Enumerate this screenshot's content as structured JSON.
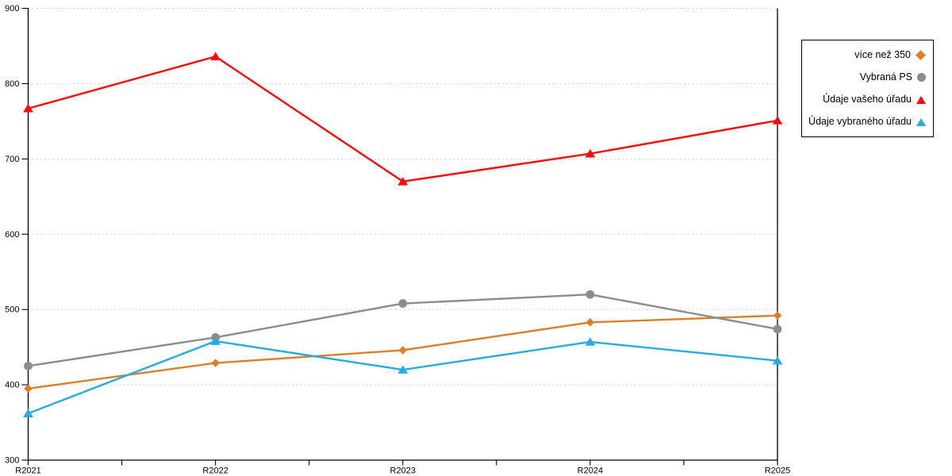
{
  "chart_data": {
    "type": "line",
    "title": "",
    "xlabel": "",
    "ylabel": "",
    "categories": [
      "R2021",
      "R2022",
      "R2023",
      "R2024",
      "R2025"
    ],
    "series": [
      {
        "name": "více než 350",
        "marker": "diamond",
        "color": "#DD7E28",
        "values": [
          395,
          429,
          446,
          483,
          492
        ]
      },
      {
        "name": "Vybraná PS",
        "marker": "circle",
        "color": "#8C8C8C",
        "values": [
          425,
          463,
          508,
          520,
          474
        ]
      },
      {
        "name": "Údaje vašeho úřadu",
        "marker": "triangle",
        "color": "#FA0A0A",
        "values": [
          767,
          836,
          670,
          707,
          751
        ]
      },
      {
        "name": "Údaje vybraného úřadu",
        "marker": "triangle",
        "color": "#29ABE2",
        "values": [
          362,
          458,
          420,
          457,
          432
        ]
      }
    ],
    "ylim": [
      300,
      900
    ],
    "yticks": [
      300,
      400,
      500,
      600,
      700,
      800,
      900
    ],
    "grid": "horizontal-dotted",
    "grid_color": "#c3c3c3",
    "axis_color": "#000000",
    "legend_position": "outside-right"
  },
  "legend": {
    "items": [
      {
        "label": "více než 350"
      },
      {
        "label": "Vybraná PS"
      },
      {
        "label": "Údaje vašeho úřadu"
      },
      {
        "label": "Údaje vybraného úřadu"
      }
    ]
  }
}
